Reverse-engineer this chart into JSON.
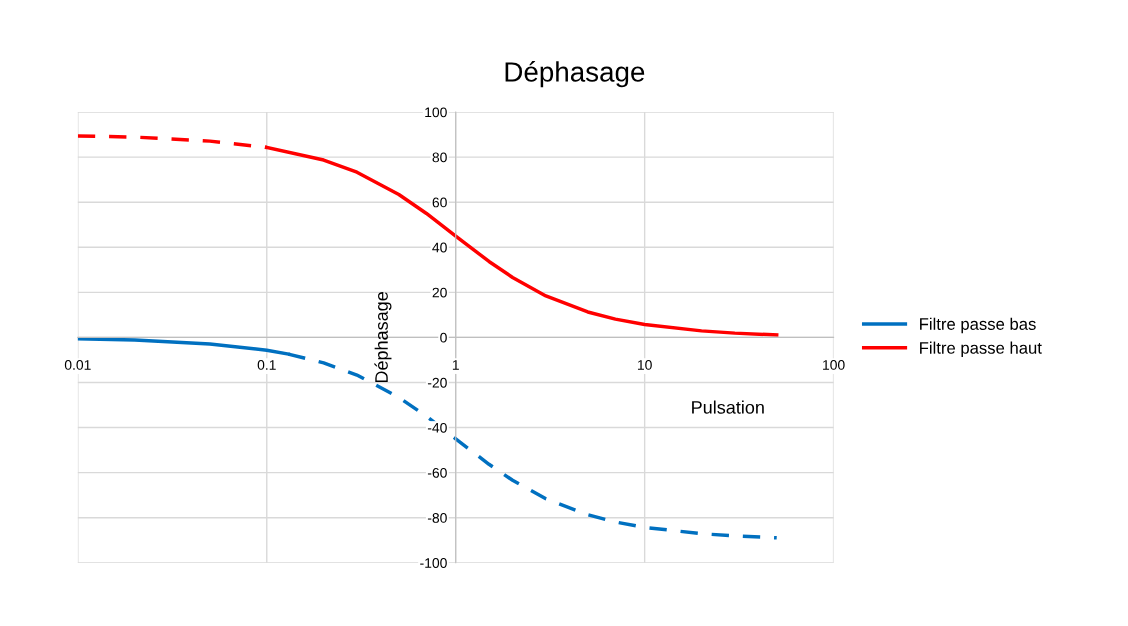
{
  "chart_data": {
    "type": "line",
    "title": "Déphasage",
    "xlabel": "Pulsation",
    "ylabel": "Déphasage",
    "log": "x",
    "xlim": [
      0.01,
      100
    ],
    "ylim": [
      -100,
      100
    ],
    "xticks": [
      0.01,
      0.1,
      1,
      10,
      100
    ],
    "yticks": [
      -100,
      -80,
      -60,
      -40,
      -20,
      0,
      20,
      40,
      60,
      80,
      100
    ],
    "grid": true,
    "legend": "right",
    "series": [
      {
        "name": "Filtre passe bas",
        "color": "#0070c0",
        "line_style": "solid",
        "x": [
          0.01,
          0.02,
          0.05,
          0.1,
          0.13
        ],
        "values": [
          -0.6,
          -1.1,
          -2.9,
          -5.7,
          -7.4
        ]
      },
      {
        "color": "#0070c0",
        "line_style": "dashed",
        "x": [
          0.13,
          0.2,
          0.3,
          0.5,
          0.7,
          1,
          1.5,
          2,
          3,
          5,
          7,
          10,
          20,
          30,
          50
        ],
        "values": [
          -7.4,
          -11.3,
          -16.7,
          -26.6,
          -35,
          -45,
          -56.3,
          -63.4,
          -71.6,
          -78.7,
          -81.9,
          -84.3,
          -87.1,
          -88.1,
          -88.9
        ]
      },
      {
        "name": "Filtre passe haut",
        "color": "#ff0000",
        "line_style": "solid",
        "x": [
          0.1,
          0.2,
          0.3,
          0.5,
          0.7,
          1,
          1.5,
          2,
          3,
          5,
          7,
          10,
          20,
          30,
          50
        ],
        "values": [
          84.3,
          78.7,
          73.3,
          63.4,
          55,
          45,
          33.7,
          26.6,
          18.4,
          11.3,
          8.1,
          5.7,
          2.9,
          1.9,
          1.1
        ]
      },
      {
        "color": "#ff0000",
        "line_style": "dashed",
        "x": [
          0.01,
          0.02,
          0.05,
          0.1
        ],
        "values": [
          89.4,
          88.9,
          87.1,
          84.3
        ]
      }
    ]
  }
}
